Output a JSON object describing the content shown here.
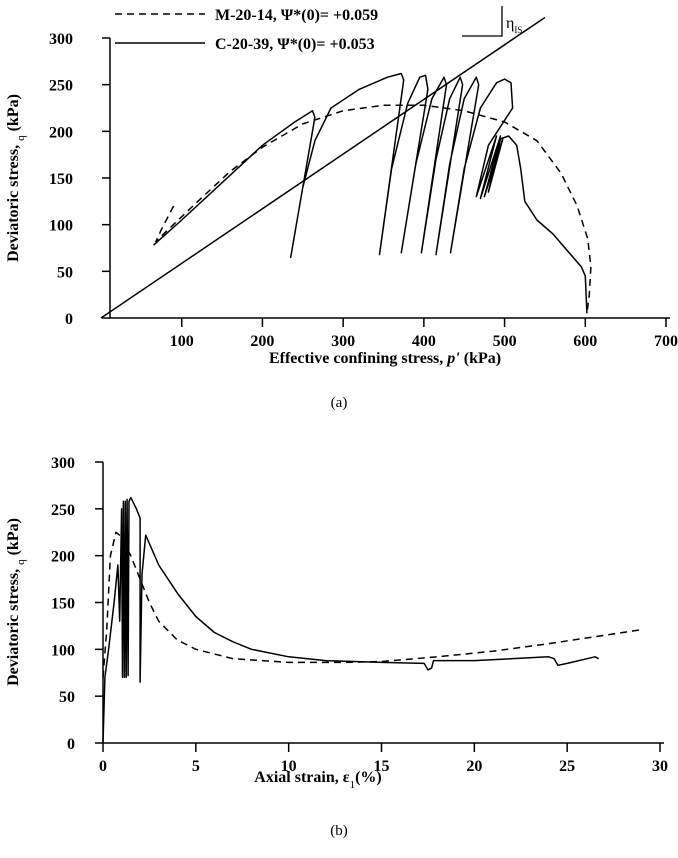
{
  "chart_data": [
    {
      "type": "line",
      "xlabel": [
        "Effective confining stress, ",
        "p'",
        " (kPa)"
      ],
      "ylabel": [
        "Deviatoric stress, ",
        "q",
        " (kPa)"
      ],
      "caption": "(a)",
      "xlim": [
        0,
        700
      ],
      "xticks": [
        100,
        200,
        300,
        400,
        500,
        600,
        700
      ],
      "ylim": [
        0,
        300
      ],
      "yticks": [
        0,
        50,
        100,
        150,
        200,
        250,
        300
      ],
      "legend": "top-left",
      "series": [
        {
          "name": "M-20-14, Ψ*(0)= +0.059",
          "color": "#000000",
          "dash": true,
          "x": [
            90,
            75,
            68,
            80,
            120,
            160,
            200,
            250,
            300,
            350,
            400,
            450,
            500,
            540,
            570,
            590,
            603,
            607,
            605,
            602
          ],
          "values": [
            120,
            95,
            82,
            92,
            125,
            157,
            183,
            208,
            222,
            228,
            228,
            222,
            210,
            190,
            155,
            120,
            85,
            55,
            25,
            5
          ]
        },
        {
          "name": "C-20-39, Ψ*(0)= +0.053",
          "color": "#000000",
          "dash": false,
          "x": [
            65,
            100,
            150,
            200,
            240,
            262,
            265,
            250,
            235,
            250,
            265,
            285,
            320,
            355,
            372,
            375,
            345,
            360,
            380,
            395,
            402,
            405,
            372,
            390,
            410,
            425,
            428,
            397,
            415,
            432,
            445,
            448,
            415,
            432,
            450,
            465,
            468,
            433,
            450,
            470,
            490,
            500,
            508,
            510,
            480,
            465,
            490,
            470,
            495,
            475,
            498,
            480,
            495,
            505,
            515,
            520,
            525,
            540,
            560,
            580,
            595,
            600,
            602
          ],
          "values": [
            78,
            105,
            145,
            185,
            210,
            222,
            215,
            140,
            65,
            140,
            190,
            225,
            245,
            258,
            262,
            255,
            68,
            160,
            230,
            258,
            260,
            245,
            70,
            165,
            235,
            258,
            250,
            70,
            170,
            235,
            258,
            250,
            68,
            165,
            235,
            258,
            250,
            70,
            160,
            225,
            252,
            256,
            252,
            225,
            185,
            130,
            195,
            128,
            195,
            130,
            193,
            135,
            192,
            195,
            185,
            160,
            125,
            105,
            90,
            70,
            55,
            45,
            5
          ]
        }
      ],
      "reference_line": {
        "x": [
          0,
          550
        ],
        "values": [
          0,
          322
        ]
      },
      "annotation": {
        "symbol": "η",
        "subscript": "IS"
      }
    },
    {
      "type": "line",
      "xlabel": [
        "Axial strain, ε",
        "1",
        "(%)"
      ],
      "ylabel": [
        "Deviatoric stress, ",
        "q",
        " (kPa)"
      ],
      "caption": "(b)",
      "xlim": [
        0,
        30
      ],
      "xticks": [
        0,
        5,
        10,
        15,
        20,
        25,
        30
      ],
      "ylim": [
        0,
        300
      ],
      "yticks": [
        0,
        50,
        100,
        150,
        200,
        250,
        300
      ],
      "series": [
        {
          "color": "#000000",
          "dash": true,
          "x": [
            0,
            0.2,
            0.4,
            0.7,
            1.0,
            1.5,
            2.0,
            2.5,
            3,
            4,
            5,
            7,
            10,
            13,
            15,
            18,
            21,
            24,
            27,
            29
          ],
          "values": [
            70,
            120,
            200,
            225,
            220,
            200,
            175,
            150,
            130,
            110,
            100,
            90,
            86,
            86,
            87,
            92,
            98,
            106,
            115,
            121
          ]
        },
        {
          "color": "#000000",
          "dash": false,
          "x": [
            0,
            0.1,
            0.3,
            0.6,
            0.8,
            0.9,
            1.0,
            1.05,
            1.1,
            1.15,
            1.2,
            1.25,
            1.3,
            1.35,
            1.4,
            1.5,
            1.8,
            2.0,
            2.0,
            2.1,
            2.3,
            3,
            4,
            5,
            6,
            7,
            8,
            10,
            12,
            15,
            17.3,
            17.5,
            17.7,
            17.8,
            20,
            24,
            24.3,
            24.5,
            25,
            26.5,
            26.7
          ],
          "values": [
            0,
            70,
            100,
            150,
            190,
            130,
            250,
            70,
            258,
            70,
            258,
            70,
            260,
            72,
            258,
            262,
            250,
            240,
            65,
            180,
            222,
            190,
            160,
            135,
            118,
            108,
            100,
            92,
            88,
            86,
            85,
            78,
            80,
            88,
            88,
            92,
            90,
            83,
            85,
            92,
            90
          ]
        }
      ]
    }
  ]
}
